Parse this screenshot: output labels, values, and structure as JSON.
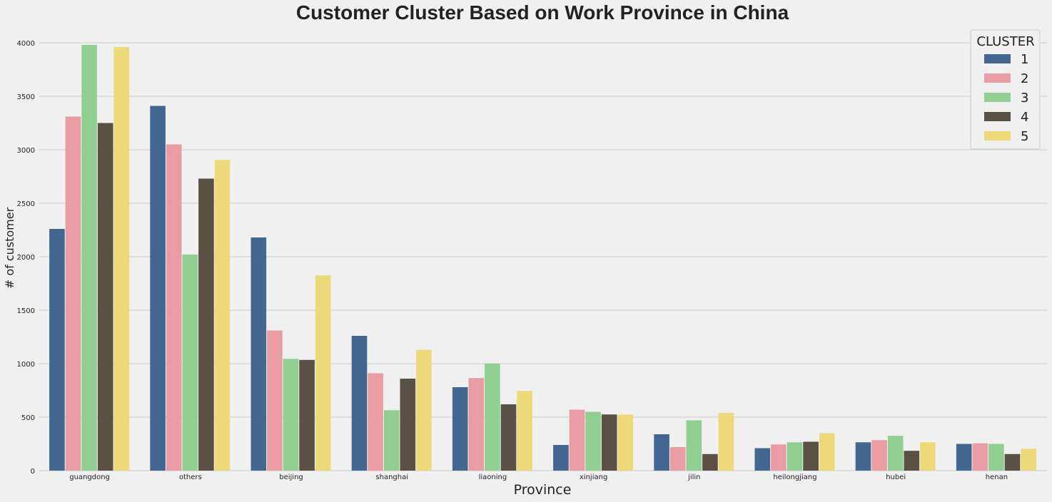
{
  "chart_data": {
    "type": "bar",
    "title": "Customer Cluster Based on Work Province in China",
    "xlabel": "Province",
    "ylabel": "# of customer",
    "ylim": [
      0,
      4000
    ],
    "yticks": [
      0,
      500,
      1000,
      1500,
      2000,
      2500,
      3000,
      3500,
      4000
    ],
    "grid": true,
    "legend": {
      "title": "CLUSTER",
      "placement": "top-right"
    },
    "categories": [
      "guangdong",
      "others",
      "beijing",
      "shanghai",
      "liaoning",
      "xinjiang",
      "jilin",
      "heilongjiang",
      "hubei",
      "henan"
    ],
    "series": [
      {
        "name": "1",
        "color": "#436791",
        "values": [
          2260,
          3410,
          2180,
          1260,
          780,
          240,
          340,
          210,
          265,
          250
        ]
      },
      {
        "name": "2",
        "color": "#e99ca2",
        "values": [
          3310,
          3050,
          1310,
          910,
          865,
          570,
          220,
          245,
          285,
          255
        ]
      },
      {
        "name": "3",
        "color": "#90ce92",
        "values": [
          3980,
          2020,
          1045,
          565,
          1000,
          550,
          470,
          265,
          325,
          250
        ]
      },
      {
        "name": "4",
        "color": "#5a5144",
        "values": [
          3250,
          2730,
          1035,
          860,
          620,
          525,
          155,
          270,
          185,
          155
        ]
      },
      {
        "name": "5",
        "color": "#eed97a",
        "values": [
          3960,
          2905,
          1825,
          1130,
          745,
          525,
          540,
          350,
          265,
          205
        ]
      }
    ]
  }
}
